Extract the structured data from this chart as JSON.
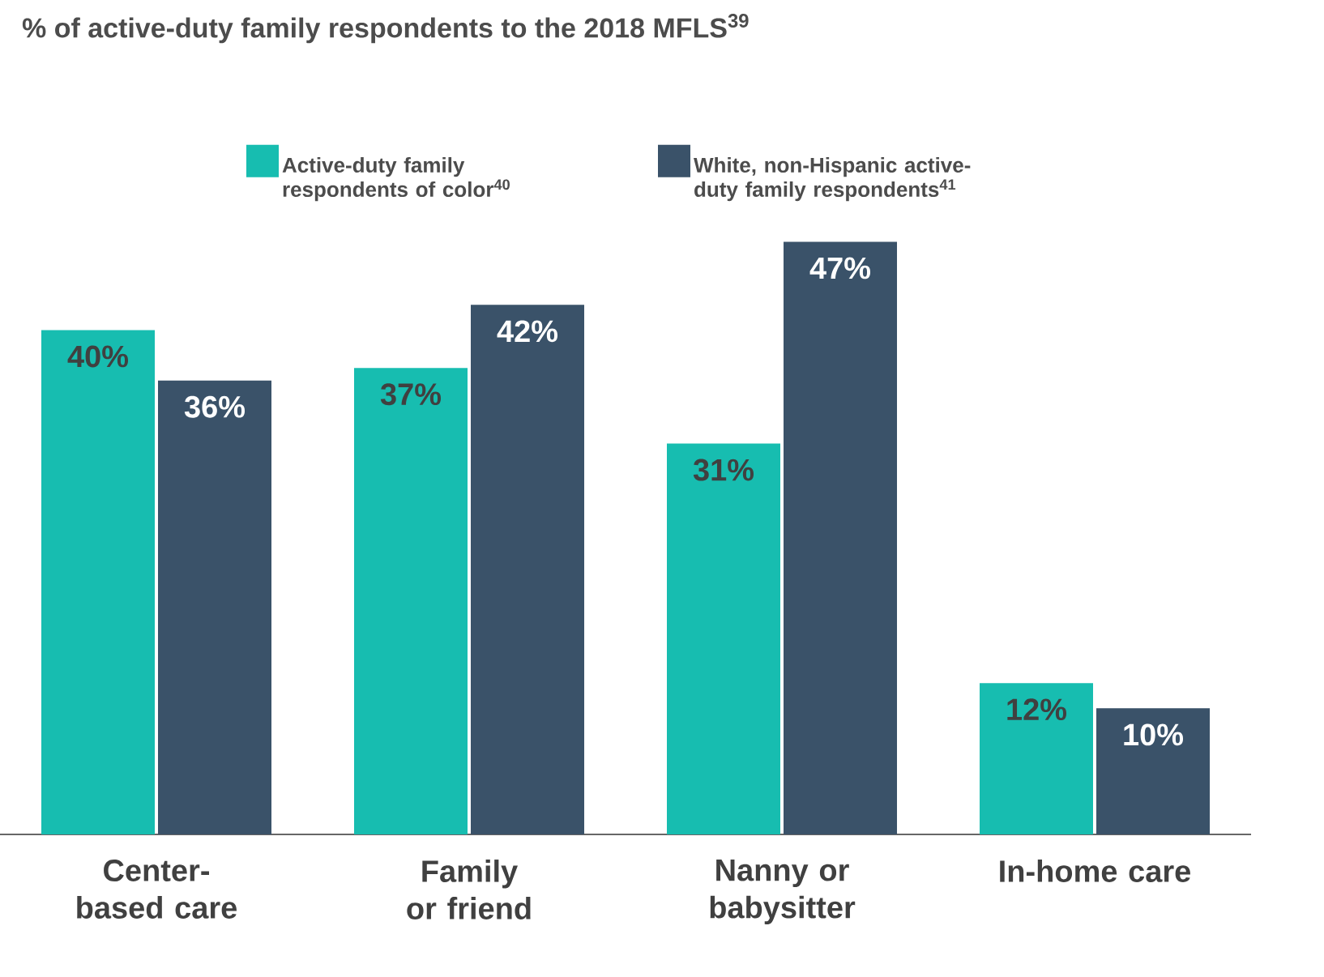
{
  "chart_data": {
    "type": "bar",
    "title": "% of active-duty family respondents to the 2018 MFLS$^{39}$",
    "categories": [
      "Center-based care",
      "Family or friend",
      "Nanny or babysitter",
      "In-home care"
    ],
    "series": [
      {
        "name": "Active-duty family respondents of color$^{40}$",
        "color": "#17bdb0",
        "values": [
          40,
          37,
          31,
          12
        ],
        "value_labels": [
          "40%",
          "37%",
          "31%",
          "12%"
        ]
      },
      {
        "name": "White, non-Hispanic active-duty family respondents$^{41}$",
        "color": "#3a5269",
        "values": [
          36,
          42,
          47,
          10
        ],
        "value_labels": [
          "36%",
          "42%",
          "47%",
          "10%"
        ]
      }
    ],
    "tick_labels": "x",
    "legend": "top",
    "grid": false
  }
}
